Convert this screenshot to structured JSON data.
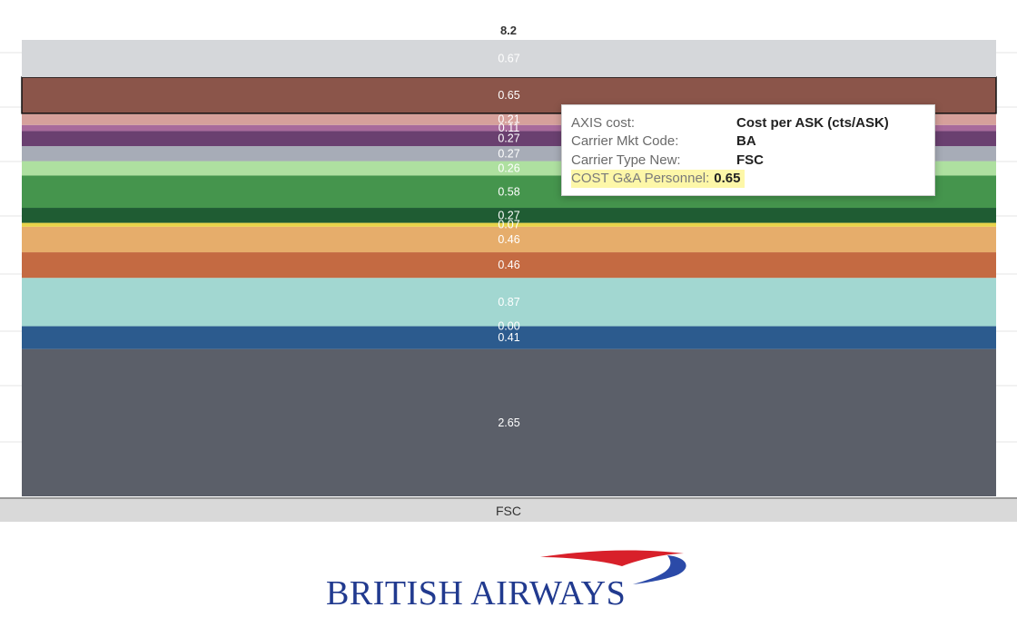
{
  "chart_data": {
    "type": "stacked-bar",
    "category": "FSC",
    "total_label": "8.2",
    "segments": [
      {
        "value": 2.65,
        "label": "2.65",
        "color": "#5b5f69"
      },
      {
        "value": 0.41,
        "label": "0.41",
        "color": "#2c5b8e"
      },
      {
        "value": 0.0,
        "label": "0.00",
        "color": "#3f7fbf"
      },
      {
        "value": 0.87,
        "label": "0.87",
        "color": "#a2d7d1"
      },
      {
        "value": 0.46,
        "label": "0.46",
        "color": "#c46a42"
      },
      {
        "value": 0.46,
        "label": "0.46",
        "color": "#e6ad6b"
      },
      {
        "value": 0.07,
        "label": "0.07",
        "color": "#e8d34a"
      },
      {
        "value": 0.27,
        "label": "0.27",
        "color": "#1f5c33"
      },
      {
        "value": 0.58,
        "label": "0.58",
        "color": "#45954d"
      },
      {
        "value": 0.26,
        "label": "0.26",
        "color": "#aee0a0"
      },
      {
        "value": 0.27,
        "label": "0.27",
        "color": "#a7acb7"
      },
      {
        "value": 0.27,
        "label": "0.27",
        "color": "#6a4070"
      },
      {
        "value": 0.11,
        "label": "0.11",
        "color": "#a86a9b"
      },
      {
        "value": 0.21,
        "label": "0.21",
        "color": "#d6a09b"
      },
      {
        "value": 0.65,
        "label": "0.65",
        "color": "#8b554a",
        "selected": true
      },
      {
        "value": 0.67,
        "label": "0.67",
        "color": "#d5d7da"
      }
    ]
  },
  "tooltip": {
    "rows": [
      {
        "key": "AXIS cost:",
        "value": "Cost per ASK (cts/ASK)"
      },
      {
        "key": "Carrier Mkt Code:",
        "value": "BA"
      },
      {
        "key": "Carrier Type New:",
        "value": "FSC"
      }
    ],
    "highlight": {
      "key": "COST G&A Personnel:",
      "value": "0.65"
    }
  },
  "logo": {
    "text": "BRITISH AIRWAYS",
    "swoosh_red": "#d8202a",
    "swoosh_blue": "#2b4aa8"
  }
}
